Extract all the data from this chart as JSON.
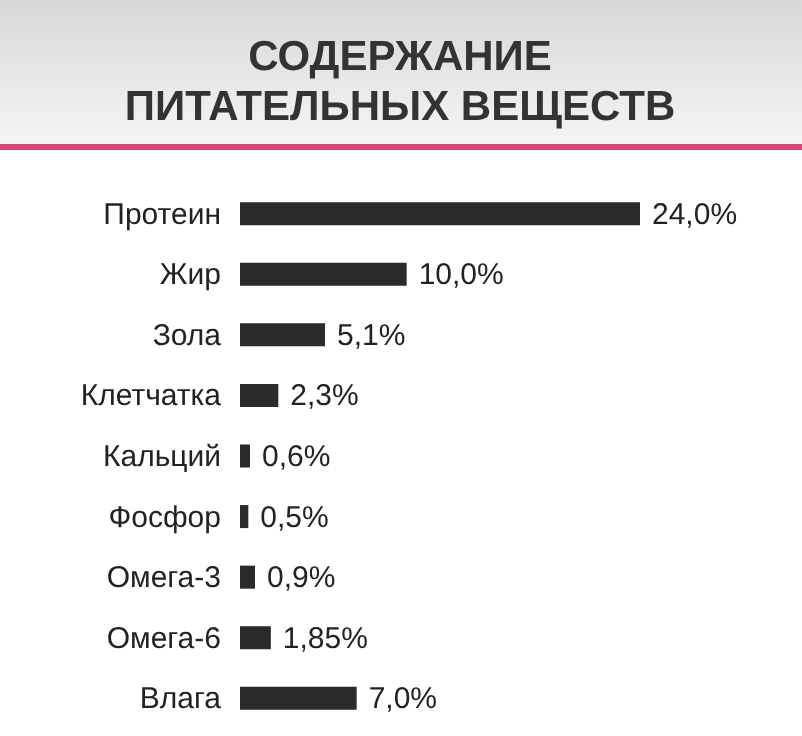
{
  "chart_data": {
    "type": "bar",
    "orientation": "horizontal",
    "title": "СОДЕРЖАНИЕ\nПИТАТЕЛЬНЫХ ВЕЩЕСТВ",
    "categories": [
      "Протеин",
      "Жир",
      "Зола",
      "Клетчатка",
      "Кальций",
      "Фосфор",
      "Омега-3",
      "Омега-6",
      "Влага"
    ],
    "values": [
      24.0,
      10.0,
      5.1,
      2.3,
      0.6,
      0.5,
      0.9,
      1.85,
      7.0
    ],
    "value_labels": [
      "24,0%",
      "10,0%",
      "5,1%",
      "2,3%",
      "0,6%",
      "0,5%",
      "0,9%",
      "1,85%",
      "7,0%"
    ],
    "color": "#2b2b2b"
  }
}
